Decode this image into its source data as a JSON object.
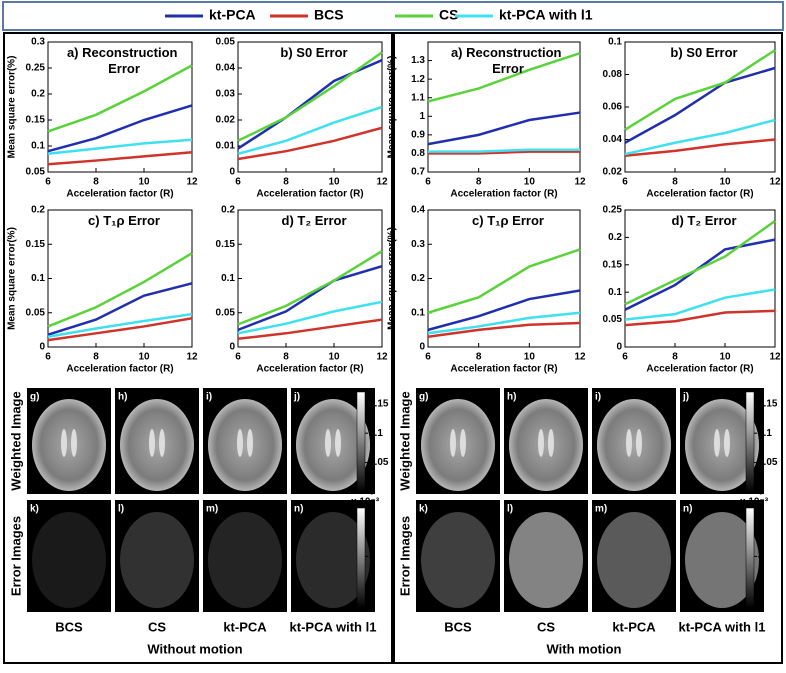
{
  "chart_data": [
    {
      "type": "line",
      "title": "a) Reconstruction Error",
      "xlabel": "Acceleration factor (R)",
      "ylabel": "Mean square error(%)",
      "x": [
        6,
        8,
        10,
        12
      ],
      "xlim": [
        6,
        12
      ],
      "xticks": [
        6,
        8,
        10,
        12
      ],
      "ylim": [
        0.05,
        0.3
      ],
      "yticks": [
        0.05,
        0.1,
        0.15,
        0.2,
        0.25,
        0.3
      ],
      "series": [
        {
          "name": "kt-PCA",
          "color": "#1f2fb0",
          "values": [
            0.09,
            0.115,
            0.15,
            0.178
          ]
        },
        {
          "name": "BCS",
          "color": "#d0332a",
          "values": [
            0.065,
            0.072,
            0.08,
            0.088
          ]
        },
        {
          "name": "CS",
          "color": "#5ad33a",
          "values": [
            0.128,
            0.16,
            0.205,
            0.255
          ]
        },
        {
          "name": "kt-PCA with l1",
          "color": "#3fe0f0",
          "values": [
            0.085,
            0.095,
            0.105,
            0.112
          ]
        }
      ]
    },
    {
      "type": "line",
      "title": "b) S0 Error",
      "xlabel": "Acceleration factor (R)",
      "x": [
        6,
        8,
        10,
        12
      ],
      "xlim": [
        6,
        12
      ],
      "xticks": [
        6,
        8,
        10,
        12
      ],
      "ylim": [
        0,
        0.05
      ],
      "yticks": [
        0,
        0.01,
        0.02,
        0.03,
        0.04,
        0.05
      ],
      "series": [
        {
          "name": "kt-PCA",
          "color": "#1f2fb0",
          "values": [
            0.009,
            0.021,
            0.035,
            0.043
          ]
        },
        {
          "name": "BCS",
          "color": "#d0332a",
          "values": [
            0.005,
            0.008,
            0.012,
            0.017
          ]
        },
        {
          "name": "CS",
          "color": "#5ad33a",
          "values": [
            0.012,
            0.021,
            0.033,
            0.046
          ]
        },
        {
          "name": "kt-PCA with l1",
          "color": "#3fe0f0",
          "values": [
            0.007,
            0.012,
            0.019,
            0.025
          ]
        }
      ]
    },
    {
      "type": "line",
      "title": "c) T₁ρ Error",
      "xlabel": "Acceleration factor (R)",
      "ylabel": "Mean square error(%)",
      "x": [
        6,
        8,
        10,
        12
      ],
      "xlim": [
        6,
        12
      ],
      "xticks": [
        6,
        8,
        10,
        12
      ],
      "ylim": [
        0,
        0.2
      ],
      "yticks": [
        0,
        0.05,
        0.1,
        0.15,
        0.2
      ],
      "series": [
        {
          "name": "kt-PCA",
          "color": "#1f2fb0",
          "values": [
            0.018,
            0.04,
            0.075,
            0.093
          ]
        },
        {
          "name": "BCS",
          "color": "#d0332a",
          "values": [
            0.01,
            0.02,
            0.03,
            0.042
          ]
        },
        {
          "name": "CS",
          "color": "#5ad33a",
          "values": [
            0.03,
            0.058,
            0.095,
            0.137
          ]
        },
        {
          "name": "kt-PCA with l1",
          "color": "#3fe0f0",
          "values": [
            0.015,
            0.027,
            0.038,
            0.048
          ]
        }
      ]
    },
    {
      "type": "line",
      "title": "d) T₂ Error",
      "xlabel": "Acceleration factor (R)",
      "x": [
        6,
        8,
        10,
        12
      ],
      "xlim": [
        6,
        12
      ],
      "xticks": [
        6,
        8,
        10,
        12
      ],
      "ylim": [
        0,
        0.2
      ],
      "yticks": [
        0,
        0.05,
        0.1,
        0.15,
        0.2
      ],
      "series": [
        {
          "name": "kt-PCA",
          "color": "#1f2fb0",
          "values": [
            0.025,
            0.052,
            0.097,
            0.118
          ]
        },
        {
          "name": "BCS",
          "color": "#d0332a",
          "values": [
            0.012,
            0.02,
            0.03,
            0.04
          ]
        },
        {
          "name": "CS",
          "color": "#5ad33a",
          "values": [
            0.033,
            0.06,
            0.097,
            0.14
          ]
        },
        {
          "name": "kt-PCA with l1",
          "color": "#3fe0f0",
          "values": [
            0.02,
            0.034,
            0.052,
            0.066
          ]
        }
      ]
    },
    {
      "type": "line",
      "title": "a) Reconstruction Error",
      "xlabel": "Acceleration factor (R)",
      "ylabel": "Mean square error(%)",
      "x": [
        6,
        8,
        10,
        12
      ],
      "xlim": [
        6,
        12
      ],
      "xticks": [
        6,
        8,
        10,
        12
      ],
      "ylim": [
        0.7,
        1.4
      ],
      "yticks": [
        0.7,
        0.8,
        0.9,
        1,
        1.1,
        1.2,
        1.3
      ],
      "series": [
        {
          "name": "kt-PCA",
          "color": "#1f2fb0",
          "values": [
            0.85,
            0.9,
            0.98,
            1.02
          ]
        },
        {
          "name": "BCS",
          "color": "#d0332a",
          "values": [
            0.8,
            0.8,
            0.81,
            0.81
          ]
        },
        {
          "name": "CS",
          "color": "#5ad33a",
          "values": [
            1.08,
            1.15,
            1.25,
            1.34
          ]
        },
        {
          "name": "kt-PCA with l1",
          "color": "#3fe0f0",
          "values": [
            0.81,
            0.81,
            0.82,
            0.82
          ]
        }
      ]
    },
    {
      "type": "line",
      "title": "b) S0 Error",
      "xlabel": "Acceleration factor (R)",
      "x": [
        6,
        8,
        10,
        12
      ],
      "xlim": [
        6,
        12
      ],
      "xticks": [
        6,
        8,
        10,
        12
      ],
      "ylim": [
        0.02,
        0.1
      ],
      "yticks": [
        0.02,
        0.04,
        0.06,
        0.08,
        0.1
      ],
      "series": [
        {
          "name": "kt-PCA",
          "color": "#1f2fb0",
          "values": [
            0.038,
            0.055,
            0.075,
            0.084
          ]
        },
        {
          "name": "BCS",
          "color": "#d0332a",
          "values": [
            0.03,
            0.033,
            0.037,
            0.04
          ]
        },
        {
          "name": "CS",
          "color": "#5ad33a",
          "values": [
            0.046,
            0.065,
            0.075,
            0.095
          ]
        },
        {
          "name": "kt-PCA with l1",
          "color": "#3fe0f0",
          "values": [
            0.031,
            0.038,
            0.044,
            0.052
          ]
        }
      ]
    },
    {
      "type": "line",
      "title": "c) T₁ρ Error",
      "xlabel": "Acceleration factor (R)",
      "ylabel": "Mean square error(%)",
      "x": [
        6,
        8,
        10,
        12
      ],
      "xlim": [
        6,
        12
      ],
      "xticks": [
        6,
        8,
        10,
        12
      ],
      "ylim": [
        0,
        0.4
      ],
      "yticks": [
        0,
        0.1,
        0.2,
        0.3,
        0.4
      ],
      "series": [
        {
          "name": "kt-PCA",
          "color": "#1f2fb0",
          "values": [
            0.05,
            0.09,
            0.14,
            0.165
          ]
        },
        {
          "name": "BCS",
          "color": "#d0332a",
          "values": [
            0.03,
            0.05,
            0.065,
            0.07
          ]
        },
        {
          "name": "CS",
          "color": "#5ad33a",
          "values": [
            0.1,
            0.145,
            0.235,
            0.285
          ]
        },
        {
          "name": "kt-PCA with l1",
          "color": "#3fe0f0",
          "values": [
            0.04,
            0.06,
            0.085,
            0.1
          ]
        }
      ]
    },
    {
      "type": "line",
      "title": "d) T₂ Error",
      "xlabel": "Acceleration factor (R)",
      "x": [
        6,
        8,
        10,
        12
      ],
      "xlim": [
        6,
        12
      ],
      "xticks": [
        6,
        8,
        10,
        12
      ],
      "ylim": [
        0,
        0.25
      ],
      "yticks": [
        0,
        0.05,
        0.1,
        0.15,
        0.2,
        0.25
      ],
      "series": [
        {
          "name": "kt-PCA",
          "color": "#1f2fb0",
          "values": [
            0.068,
            0.113,
            0.178,
            0.196
          ]
        },
        {
          "name": "BCS",
          "color": "#d0332a",
          "values": [
            0.04,
            0.047,
            0.063,
            0.066
          ]
        },
        {
          "name": "CS",
          "color": "#5ad33a",
          "values": [
            0.078,
            0.122,
            0.165,
            0.23
          ]
        },
        {
          "name": "kt-PCA with l1",
          "color": "#3fe0f0",
          "values": [
            0.05,
            0.06,
            0.09,
            0.105
          ]
        }
      ]
    }
  ],
  "image_panels": [
    {
      "row_labels": [
        "Weighted Image",
        "Error Images"
      ],
      "image_labels": [
        "g)",
        "h)",
        "i)",
        "j)",
        "k)",
        "l)",
        "m)",
        "n)"
      ],
      "colorbar_weighted": {
        "lim": [
          0,
          0.17
        ],
        "ticks": [
          0,
          0.05,
          0.1,
          0.15
        ]
      },
      "colorbar_error": {
        "scale": "x 10⁻³",
        "lim": [
          0.8,
          7
        ],
        "ticks": [
          2,
          4,
          6
        ]
      },
      "columns": [
        "BCS",
        "CS",
        "kt-PCA",
        "kt-PCA with l1"
      ],
      "caption": "Without motion"
    },
    {
      "row_labels": [
        "Weighted Image",
        "Error Images"
      ],
      "image_labels": [
        "g)",
        "h)",
        "i)",
        "j)",
        "k)",
        "l)",
        "m)",
        "n)"
      ],
      "colorbar_weighted": {
        "lim": [
          0,
          0.17
        ],
        "ticks": [
          0,
          0.05,
          0.1,
          0.15
        ]
      },
      "colorbar_error": {
        "scale": "x 10⁻³",
        "lim": [
          0.8,
          7
        ],
        "ticks": [
          2,
          4,
          6
        ]
      },
      "columns": [
        "BCS",
        "CS",
        "kt-PCA",
        "kt-PCA with l1"
      ],
      "caption": "With motion"
    }
  ]
}
